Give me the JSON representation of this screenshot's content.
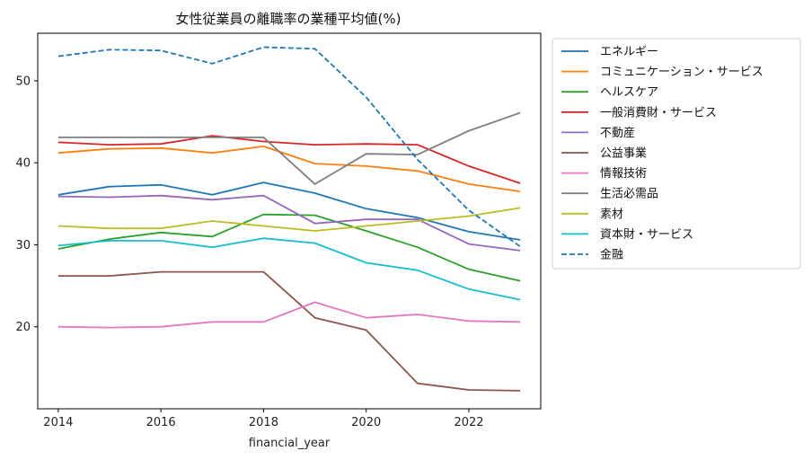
{
  "chart_data": {
    "type": "line",
    "title": "女性従業員の離職率の業種平均値(%)",
    "xlabel": "financial_year",
    "ylabel": "",
    "x": [
      2014,
      2015,
      2016,
      2017,
      2018,
      2019,
      2020,
      2021,
      2022,
      2023
    ],
    "xlim": [
      2013.6,
      2023.4
    ],
    "ylim": [
      10.0,
      55.8
    ],
    "xticks": [
      2014,
      2016,
      2018,
      2020,
      2022
    ],
    "yticks": [
      20,
      30,
      40,
      50
    ],
    "legend_position": "outside-right",
    "series": [
      {
        "name": "エネルギー",
        "color": "#1f77b4",
        "dash": "solid",
        "values": [
          36.1,
          37.1,
          37.3,
          36.1,
          37.6,
          36.3,
          34.4,
          33.3,
          31.6,
          30.6
        ]
      },
      {
        "name": "コミュニケーション・サービス",
        "color": "#ff7f0e",
        "dash": "solid",
        "values": [
          41.2,
          41.7,
          41.8,
          41.2,
          42.0,
          39.9,
          39.6,
          39.0,
          37.4,
          36.5
        ]
      },
      {
        "name": "ヘルスケア",
        "color": "#2ca02c",
        "dash": "solid",
        "values": [
          29.5,
          30.7,
          31.5,
          31.0,
          33.7,
          33.6,
          31.7,
          29.7,
          27.0,
          25.6
        ]
      },
      {
        "name": "一般消費財・サービス",
        "color": "#d62728",
        "dash": "solid",
        "values": [
          42.5,
          42.2,
          42.3,
          43.3,
          42.6,
          42.2,
          42.3,
          42.2,
          39.6,
          37.5
        ]
      },
      {
        "name": "不動産",
        "color": "#9467bd",
        "dash": "solid",
        "values": [
          35.9,
          35.8,
          36.0,
          35.5,
          36.0,
          32.6,
          33.1,
          33.1,
          30.1,
          29.3
        ]
      },
      {
        "name": "公益事業",
        "color": "#8c564b",
        "dash": "solid",
        "values": [
          26.2,
          26.2,
          26.7,
          26.7,
          26.7,
          21.1,
          19.6,
          13.1,
          12.3,
          12.2
        ]
      },
      {
        "name": "情報技術",
        "color": "#e377c2",
        "dash": "solid",
        "values": [
          20.0,
          19.9,
          20.0,
          20.6,
          20.6,
          23.0,
          21.1,
          21.5,
          20.7,
          20.6
        ]
      },
      {
        "name": "生活必需品",
        "color": "#7f7f7f",
        "dash": "solid",
        "values": [
          43.1,
          43.1,
          43.1,
          43.1,
          43.1,
          37.4,
          41.1,
          41.0,
          43.9,
          46.1
        ]
      },
      {
        "name": "素材",
        "color": "#bcbd22",
        "dash": "solid",
        "values": [
          32.3,
          32.0,
          32.0,
          32.9,
          32.3,
          31.7,
          32.3,
          32.9,
          33.5,
          34.5
        ]
      },
      {
        "name": "資本財・サービス",
        "color": "#17becf",
        "dash": "solid",
        "values": [
          29.9,
          30.5,
          30.5,
          29.7,
          30.8,
          30.2,
          27.8,
          26.9,
          24.6,
          23.3
        ]
      },
      {
        "name": "金融",
        "color": "#1f77b4",
        "dash": "dashed",
        "values": [
          53.0,
          53.8,
          53.7,
          52.1,
          54.1,
          53.9,
          48.0,
          40.4,
          34.2,
          29.8
        ]
      }
    ]
  }
}
